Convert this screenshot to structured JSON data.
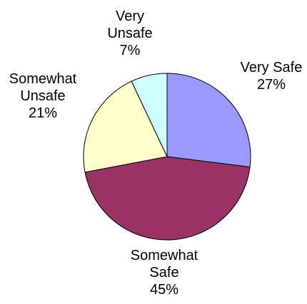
{
  "chart_data": {
    "type": "pie",
    "title": "",
    "slices": [
      {
        "label": [
          "Very Safe"
        ],
        "value": 27,
        "display": "27%",
        "color": "#9999ff"
      },
      {
        "label": [
          "Somewhat",
          "Safe"
        ],
        "value": 45,
        "display": "45%",
        "color": "#993366"
      },
      {
        "label": [
          "Somewhat",
          "Unsafe"
        ],
        "value": 21,
        "display": "21%",
        "color": "#ffffcc"
      },
      {
        "label": [
          "Very",
          "Unsafe"
        ],
        "value": 7,
        "display": "7%",
        "color": "#ccffff"
      }
    ],
    "start_angle_deg": 0,
    "direction": "clockwise",
    "legend": "none"
  }
}
